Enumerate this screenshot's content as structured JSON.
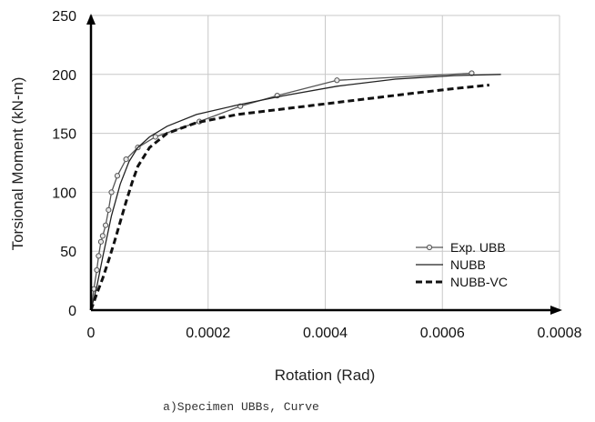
{
  "chart_data": {
    "type": "line",
    "xlabel": "Rotation (Rad)",
    "ylabel": "Torsional Moment (kN-m)",
    "xlim": [
      0,
      0.0008
    ],
    "ylim": [
      0,
      250
    ],
    "x_ticks": [
      "0",
      "0.0002",
      "0.0004",
      "0.0006",
      "0.0008"
    ],
    "x_tick_values": [
      0,
      0.0002,
      0.0004,
      0.0006,
      0.0008
    ],
    "y_ticks": [
      "0",
      "50",
      "100",
      "150",
      "200",
      "250"
    ],
    "y_tick_values": [
      0,
      50,
      100,
      150,
      200,
      250
    ],
    "grid": true,
    "legend_position": "bottom-right",
    "series": [
      {
        "name": "Exp. UBB",
        "style": "line-with-circle-markers",
        "color": "#555555",
        "x": [
          0,
          5e-06,
          1e-05,
          1.3e-05,
          1.7e-05,
          2e-05,
          2.5e-05,
          3e-05,
          3.5e-05,
          4.5e-05,
          6e-05,
          8e-05,
          0.00011,
          0.000185,
          0.000255,
          0.000318,
          0.00042,
          0.00065
        ],
        "y": [
          0,
          18,
          34,
          46,
          58,
          63,
          72,
          85,
          100,
          114,
          128,
          138,
          147,
          160,
          173,
          182,
          195,
          201
        ]
      },
      {
        "name": "NUBB",
        "style": "solid",
        "color": "#222222",
        "x": [
          0,
          1e-05,
          2e-05,
          3.5e-05,
          5e-05,
          6.5e-05,
          8e-05,
          0.0001,
          0.00013,
          0.00018,
          0.00025,
          0.00033,
          0.00042,
          0.00052,
          0.00062,
          0.0007
        ],
        "y": [
          0,
          20,
          45,
          80,
          107,
          126,
          138,
          147,
          156,
          166,
          174,
          182,
          190,
          196,
          199,
          200
        ]
      },
      {
        "name": "NUBB-VC",
        "style": "dashed",
        "color": "#111111",
        "x": [
          0,
          1e-05,
          2e-05,
          3e-05,
          4e-05,
          5e-05,
          6e-05,
          7e-05,
          8e-05,
          0.0001,
          0.00013,
          0.00018,
          0.00025,
          0.00035,
          0.00045,
          0.00055,
          0.00062,
          0.00068
        ],
        "y": [
          0,
          14,
          27,
          42,
          58,
          75,
          92,
          108,
          122,
          138,
          150,
          159,
          166,
          172,
          178,
          184,
          188,
          191
        ]
      }
    ]
  },
  "caption": "a)Specimen UBBs, Curve"
}
